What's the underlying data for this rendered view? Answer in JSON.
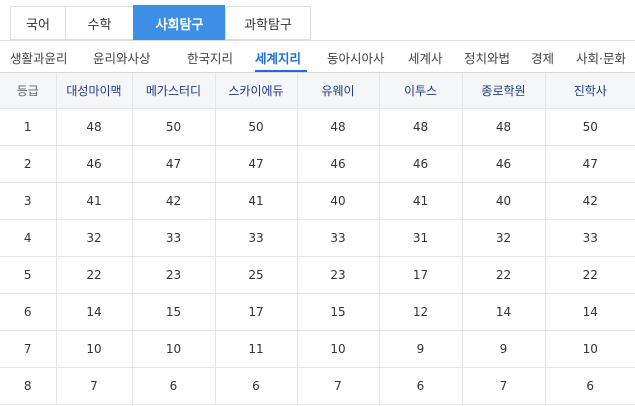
{
  "subject_tabs": [
    {
      "label": "국어",
      "active": false
    },
    {
      "label": "수학",
      "active": false
    },
    {
      "label": "사회탐구",
      "active": true
    },
    {
      "label": "과학탐구",
      "active": false
    }
  ],
  "sub_tabs": [
    {
      "label": "생활과윤리",
      "active": false
    },
    {
      "label": "윤리와사상",
      "active": false
    },
    {
      "label": "한국지리",
      "active": false
    },
    {
      "label": "세계지리",
      "active": true
    },
    {
      "label": "동아시아사",
      "active": false
    },
    {
      "label": "세계사",
      "active": false
    },
    {
      "label": "정치와법",
      "active": false
    },
    {
      "label": "경제",
      "active": false
    },
    {
      "label": "사회·문화",
      "active": false
    }
  ],
  "table": {
    "headers": [
      "등급",
      "대성마이맥",
      "메가스터디",
      "스카이에듀",
      "유웨이",
      "이투스",
      "종로학원",
      "진학사"
    ],
    "rows": [
      [
        "1",
        "48",
        "50",
        "50",
        "48",
        "48",
        "48",
        "50"
      ],
      [
        "2",
        "46",
        "47",
        "47",
        "46",
        "46",
        "46",
        "47"
      ],
      [
        "3",
        "41",
        "42",
        "41",
        "40",
        "41",
        "40",
        "42"
      ],
      [
        "4",
        "32",
        "33",
        "33",
        "33",
        "31",
        "32",
        "33"
      ],
      [
        "5",
        "22",
        "23",
        "25",
        "23",
        "17",
        "22",
        "22"
      ],
      [
        "6",
        "14",
        "15",
        "17",
        "15",
        "12",
        "14",
        "14"
      ],
      [
        "7",
        "10",
        "10",
        "11",
        "10",
        "9",
        "9",
        "10"
      ],
      [
        "8",
        "7",
        "6",
        "6",
        "7",
        "6",
        "7",
        "6"
      ]
    ]
  },
  "colors": {
    "active_tab_bg": "#3d8fe6",
    "active_subtab_text": "#1e6ed8",
    "header_text": "#1c3a8a"
  }
}
